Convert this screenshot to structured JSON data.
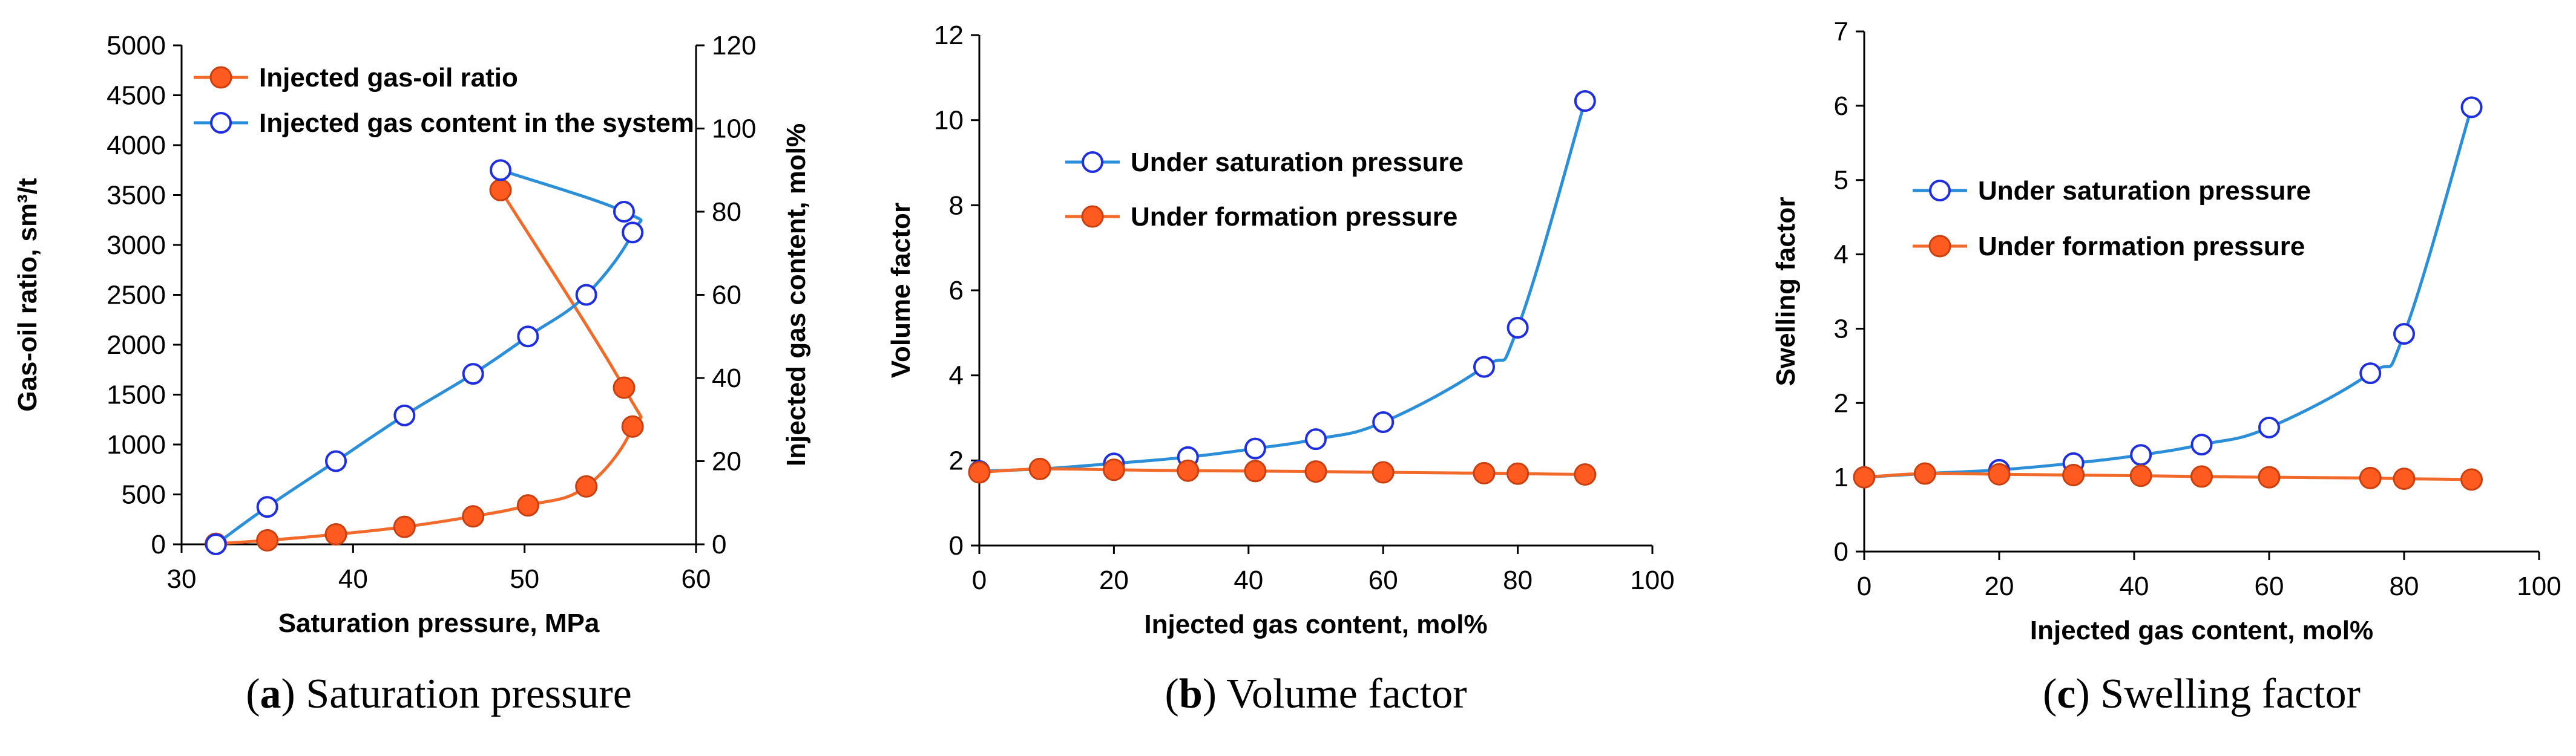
{
  "colors": {
    "orange": "#f26a2a",
    "orange_fill": "#ff5a1f",
    "blue": "#2a8fd8",
    "blue_marker": "#1f2fe0",
    "axis": "#000000"
  },
  "chart_data": [
    {
      "id": "a",
      "type": "line",
      "caption": {
        "letter": "a",
        "text": " Saturation pressure"
      },
      "xlabel": "Saturation pressure, MPa",
      "ylabel": "Gas-oil ratio,  sm³/t",
      "y2label": "Injected gas content,  mol%",
      "xlim": [
        30,
        60
      ],
      "xticks": [
        "30",
        "40",
        "50",
        "60"
      ],
      "ylim": [
        0,
        5000
      ],
      "yticks": [
        "0",
        "500",
        "1000",
        "1500",
        "2000",
        "2500",
        "3000",
        "3500",
        "4000",
        "4500",
        "5000"
      ],
      "y2lim": [
        0,
        120
      ],
      "y2ticks": [
        "0",
        "20",
        "40",
        "60",
        "80",
        "100",
        "120"
      ],
      "legend_position": "top-left",
      "series": [
        {
          "name": "Injected gas-oil ratio",
          "axis": "left",
          "marker": "filled",
          "color": "orange",
          "x": [
            32.0,
            35.0,
            39.0,
            43.0,
            47.0,
            50.2,
            53.6,
            56.3,
            55.8,
            48.6
          ],
          "y": [
            5,
            40,
            100,
            175,
            280,
            390,
            580,
            1180,
            1570,
            3550
          ]
        },
        {
          "name": "Injected gas content in the system",
          "axis": "right",
          "marker": "open",
          "color": "blue",
          "x": [
            32.0,
            35.0,
            39.0,
            43.0,
            47.0,
            50.2,
            53.6,
            56.3,
            55.8,
            48.6
          ],
          "y": [
            0,
            9,
            20,
            31,
            41,
            50,
            60,
            75,
            80,
            90
          ]
        }
      ]
    },
    {
      "id": "b",
      "type": "line",
      "caption": {
        "letter": "b",
        "text": " Volume factor"
      },
      "xlabel": "Injected gas content, mol%",
      "ylabel": "Volume factor",
      "xlim": [
        0,
        100
      ],
      "xticks": [
        "0",
        "20",
        "40",
        "60",
        "80",
        "100"
      ],
      "ylim": [
        0,
        12
      ],
      "yticks": [
        "0",
        "2",
        "4",
        "6",
        "8",
        "10",
        "12"
      ],
      "legend_position": "top-left",
      "series": [
        {
          "name": "Under saturation pressure",
          "marker": "open",
          "color": "blue",
          "x": [
            0,
            9,
            20,
            31,
            41,
            50,
            60,
            75,
            80,
            90
          ],
          "y": [
            1.75,
            1.8,
            1.93,
            2.08,
            2.28,
            2.5,
            2.9,
            4.2,
            5.12,
            10.45
          ]
        },
        {
          "name": "Under formation pressure",
          "marker": "filled",
          "color": "orange",
          "x": [
            0,
            9,
            20,
            31,
            41,
            50,
            60,
            75,
            80,
            90
          ],
          "y": [
            1.72,
            1.8,
            1.78,
            1.76,
            1.75,
            1.74,
            1.72,
            1.7,
            1.69,
            1.67
          ]
        }
      ]
    },
    {
      "id": "c",
      "type": "line",
      "caption": {
        "letter": "c",
        "text": " Swelling factor"
      },
      "xlabel": "Injected gas content, mol%",
      "ylabel": "Swelling factor",
      "xlim": [
        0,
        100
      ],
      "xticks": [
        "0",
        "20",
        "40",
        "60",
        "80",
        "100"
      ],
      "ylim": [
        0,
        7
      ],
      "yticks": [
        "0",
        "1",
        "2",
        "3",
        "4",
        "5",
        "6",
        "7"
      ],
      "legend_position": "top-left",
      "series": [
        {
          "name": "Under saturation pressure",
          "marker": "open",
          "color": "blue",
          "x": [
            0,
            9,
            20,
            31,
            41,
            50,
            60,
            75,
            80,
            90
          ],
          "y": [
            1.0,
            1.05,
            1.1,
            1.19,
            1.3,
            1.44,
            1.67,
            2.4,
            2.93,
            5.98
          ]
        },
        {
          "name": "Under formation pressure",
          "marker": "filled",
          "color": "orange",
          "x": [
            0,
            9,
            20,
            31,
            41,
            50,
            60,
            75,
            80,
            90
          ],
          "y": [
            1.0,
            1.05,
            1.04,
            1.03,
            1.02,
            1.01,
            1.0,
            0.99,
            0.98,
            0.97
          ]
        }
      ]
    }
  ]
}
